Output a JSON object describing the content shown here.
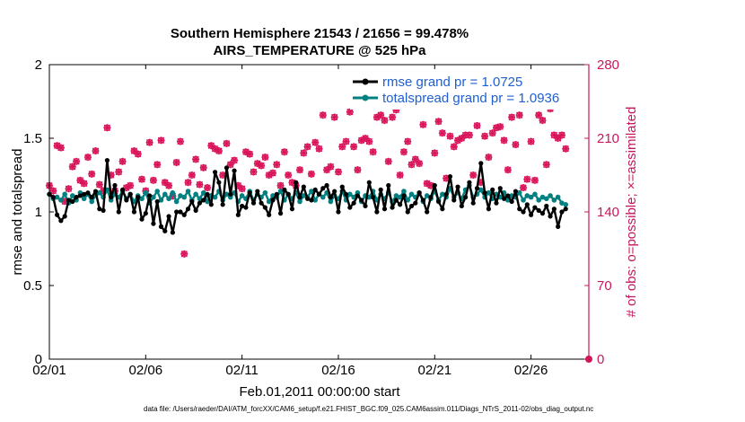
{
  "chart_data": {
    "type": "line",
    "title_line1": "Southern Hemisphere 21543 / 21656 = 99.478%",
    "title_line2": "AIRS_TEMPERATURE @ 525 hPa",
    "xlabel": "Feb.01,2011 00:00:00 start",
    "ylabel_left": "rmse and totalspread",
    "ylabel_right": "# of obs: o=possible; ×=assimilated",
    "x_ticks": [
      "02/01",
      "02/06",
      "02/11",
      "02/16",
      "02/21",
      "02/26"
    ],
    "x_tick_days": [
      1,
      6,
      11,
      16,
      21,
      26
    ],
    "xlim": [
      1,
      29
    ],
    "ylim_left": [
      0,
      2
    ],
    "y_ticks_left": [
      "0",
      "0.5",
      "1",
      "1.5",
      "2"
    ],
    "ylim_right": [
      0,
      280
    ],
    "y_ticks_right": [
      "0",
      "70",
      "140",
      "210",
      "280"
    ],
    "legend": {
      "rmse": "rmse grand pr = 1.0725",
      "spread": "totalspread grand pr = 1.0936"
    },
    "colors": {
      "rmse": "#000000",
      "spread": "#008080",
      "obs": "#d9145a",
      "right_axis": "#c8175d"
    },
    "series": [
      {
        "name": "rmse",
        "values": [
          1.12,
          1.1,
          0.98,
          0.94,
          0.97,
          1.08,
          1.07,
          1.1,
          1.11,
          1.12,
          1.13,
          1.1,
          1.14,
          1.02,
          1.01,
          1.35,
          1.1,
          1.18,
          1.0,
          1.15,
          1.08,
          1.12,
          1.0,
          1.1,
          0.95,
          0.99,
          1.11,
          0.92,
          1.07,
          0.9,
          0.87,
          0.97,
          0.86,
          1.0,
          1.0,
          0.98,
          1.02,
          1.07,
          1.01,
          1.06,
          1.08,
          1.12,
          1.05,
          1.27,
          1.2,
          1.05,
          1.3,
          1.12,
          1.28,
          0.98,
          1.04,
          1.03,
          1.13,
          1.06,
          1.14,
          1.06,
          1.03,
          0.98,
          1.08,
          1.12,
          0.99,
          1.15,
          1.12,
          1.02,
          1.2,
          1.1,
          1.17,
          1.09,
          1.08,
          1.15,
          1.12,
          1.16,
          1.18,
          1.1,
          1.14,
          1.0,
          1.17,
          1.12,
          1.03,
          1.06,
          1.11,
          1.08,
          1.04,
          1.2,
          1.1,
          1.0,
          1.15,
          1.02,
          1.18,
          1.03,
          1.08,
          1.05,
          1.11,
          1.0,
          1.04,
          1.06,
          1.13,
          1.08,
          1.0,
          1.1,
          1.18,
          1.07,
          1.02,
          1.12,
          1.24,
          1.08,
          1.17,
          1.04,
          1.1,
          1.2,
          1.06,
          1.16,
          1.33,
          1.13,
          1.02,
          1.15,
          1.06,
          1.16,
          1.09,
          1.11,
          1.07,
          1.14,
          1.02,
          1.0,
          1.05,
          0.98,
          1.03,
          1.01,
          0.99,
          1.04,
          0.97,
          1.02,
          0.9,
          1.0,
          1.02
        ]
      },
      {
        "name": "totalspread",
        "values": [
          1.12,
          1.09,
          1.1,
          1.08,
          1.12,
          1.06,
          1.11,
          1.08,
          1.13,
          1.09,
          1.12,
          1.07,
          1.11,
          1.13,
          1.1,
          1.15,
          1.08,
          1.12,
          1.1,
          1.14,
          1.09,
          1.12,
          1.07,
          1.11,
          1.09,
          1.13,
          1.06,
          1.1,
          1.14,
          1.08,
          1.12,
          1.09,
          1.13,
          1.07,
          1.11,
          1.1,
          1.14,
          1.08,
          1.12,
          1.09,
          1.13,
          1.07,
          1.11,
          1.1,
          1.14,
          1.08,
          1.12,
          1.1,
          1.13,
          1.07,
          1.11,
          1.09,
          1.14,
          1.08,
          1.12,
          1.1,
          1.13,
          1.07,
          1.11,
          1.1,
          1.14,
          1.08,
          1.12,
          1.09,
          1.13,
          1.07,
          1.11,
          1.1,
          1.14,
          1.08,
          1.12,
          1.1,
          1.13,
          1.07,
          1.11,
          1.09,
          1.14,
          1.08,
          1.12,
          1.1,
          1.13,
          1.07,
          1.11,
          1.1,
          1.14,
          1.08,
          1.12,
          1.09,
          1.13,
          1.07,
          1.11,
          1.1,
          1.14,
          1.08,
          1.12,
          1.1,
          1.13,
          1.07,
          1.11,
          1.09,
          1.14,
          1.08,
          1.12,
          1.1,
          1.16,
          1.1,
          1.13,
          1.09,
          1.15,
          1.18,
          1.1,
          1.12,
          1.15,
          1.1,
          1.13,
          1.09,
          1.12,
          1.1,
          1.13,
          1.08,
          1.11,
          1.1,
          1.13,
          1.08,
          1.11,
          1.1,
          1.12,
          1.08,
          1.1,
          1.09,
          1.11,
          1.08,
          1.1,
          1.06,
          1.05
        ]
      },
      {
        "name": "obs_count",
        "values": [
          165,
          160,
          203,
          201,
          150,
          162,
          183,
          188,
          170,
          167,
          192,
          176,
          198,
          166,
          160,
          220,
          175,
          160,
          178,
          188,
          163,
          165,
          198,
          195,
          171,
          160,
          206,
          170,
          185,
          208,
          168,
          165,
          155,
          187,
          207,
          100,
          168,
          175,
          190,
          166,
          182,
          163,
          203,
          200,
          198,
          175,
          205,
          185,
          189,
          165,
          162,
          197,
          195,
          178,
          186,
          184,
          192,
          175,
          177,
          185,
          165,
          197,
          175,
          168,
          165,
          180,
          196,
          202,
          176,
          206,
          200,
          232,
          180,
          183,
          230,
          178,
          202,
          207,
          235,
          202,
          180,
          208,
          210,
          207,
          197,
          230,
          232,
          227,
          188,
          230,
          237,
          175,
          197,
          207,
          185,
          190,
          186,
          223,
          167,
          165,
          196,
          226,
          215,
          172,
          212,
          202,
          208,
          210,
          213,
          213,
          175,
          222,
          168,
          212,
          192,
          215,
          220,
          221,
          208,
          180,
          230,
          204,
          232,
          163,
          171,
          207,
          170,
          232,
          227,
          185,
          238,
          213,
          210,
          213,
          200
        ]
      }
    ]
  },
  "footer_text": "data file: /Users/raeder/DAI/ATM_forcXX/CAM6_setup/f.e21.FHIST_BGC.f09_025.CAM6assim.011/Diags_NTrS_2011-02/obs_diag_output.nc"
}
